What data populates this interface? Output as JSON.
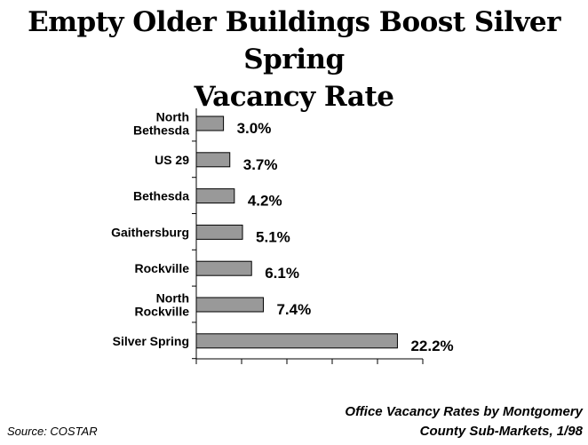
{
  "chart_data": {
    "type": "bar",
    "orientation": "horizontal",
    "title": [
      "Empty Older Buildings Boost Silver Spring",
      "Vacancy Rate"
    ],
    "categories": [
      [
        "North",
        "Bethesda"
      ],
      [
        "US 29"
      ],
      [
        "Bethesda"
      ],
      [
        "Gaithersburg"
      ],
      [
        "Rockville"
      ],
      [
        "North",
        "Rockville"
      ],
      [
        "Silver Spring"
      ]
    ],
    "values": [
      3.0,
      3.7,
      4.2,
      5.1,
      6.1,
      7.4,
      22.2
    ],
    "value_labels": [
      "3.0%",
      "3.7%",
      "4.2%",
      "5.1%",
      "6.1%",
      "7.4%",
      "22.2%"
    ],
    "xlim": [
      0,
      25
    ],
    "grid": false,
    "bar_color": "#999999"
  },
  "caption": [
    "Office Vacancy Rates by Montgomery",
    "County Sub-Markets, 1/98"
  ],
  "source": "Source: COSTAR"
}
